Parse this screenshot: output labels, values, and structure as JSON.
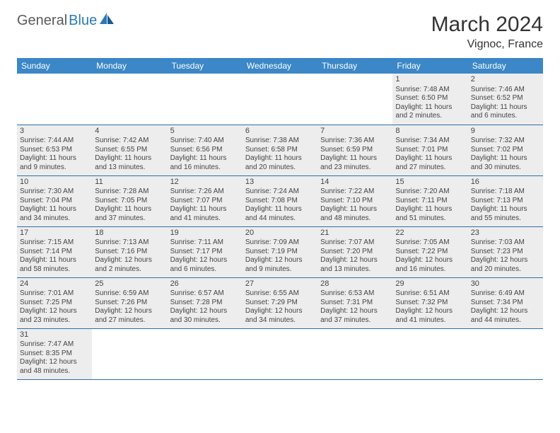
{
  "logo": {
    "brand1": "General",
    "brand2": "Blue"
  },
  "title": "March 2024",
  "location": "Vignoc, France",
  "colors": {
    "header_bg": "#3b87c7",
    "header_text": "#ffffff",
    "cell_bg": "#ededed",
    "cell_border": "#2e6fa8",
    "logo_gray": "#5a5a5a",
    "logo_blue": "#2a7ab8"
  },
  "weekdays": [
    "Sunday",
    "Monday",
    "Tuesday",
    "Wednesday",
    "Thursday",
    "Friday",
    "Saturday"
  ],
  "weeks": [
    [
      null,
      null,
      null,
      null,
      null,
      {
        "n": "1",
        "sr": "Sunrise: 7:48 AM",
        "ss": "Sunset: 6:50 PM",
        "dl": "Daylight: 11 hours and 2 minutes."
      },
      {
        "n": "2",
        "sr": "Sunrise: 7:46 AM",
        "ss": "Sunset: 6:52 PM",
        "dl": "Daylight: 11 hours and 6 minutes."
      }
    ],
    [
      {
        "n": "3",
        "sr": "Sunrise: 7:44 AM",
        "ss": "Sunset: 6:53 PM",
        "dl": "Daylight: 11 hours and 9 minutes."
      },
      {
        "n": "4",
        "sr": "Sunrise: 7:42 AM",
        "ss": "Sunset: 6:55 PM",
        "dl": "Daylight: 11 hours and 13 minutes."
      },
      {
        "n": "5",
        "sr": "Sunrise: 7:40 AM",
        "ss": "Sunset: 6:56 PM",
        "dl": "Daylight: 11 hours and 16 minutes."
      },
      {
        "n": "6",
        "sr": "Sunrise: 7:38 AM",
        "ss": "Sunset: 6:58 PM",
        "dl": "Daylight: 11 hours and 20 minutes."
      },
      {
        "n": "7",
        "sr": "Sunrise: 7:36 AM",
        "ss": "Sunset: 6:59 PM",
        "dl": "Daylight: 11 hours and 23 minutes."
      },
      {
        "n": "8",
        "sr": "Sunrise: 7:34 AM",
        "ss": "Sunset: 7:01 PM",
        "dl": "Daylight: 11 hours and 27 minutes."
      },
      {
        "n": "9",
        "sr": "Sunrise: 7:32 AM",
        "ss": "Sunset: 7:02 PM",
        "dl": "Daylight: 11 hours and 30 minutes."
      }
    ],
    [
      {
        "n": "10",
        "sr": "Sunrise: 7:30 AM",
        "ss": "Sunset: 7:04 PM",
        "dl": "Daylight: 11 hours and 34 minutes."
      },
      {
        "n": "11",
        "sr": "Sunrise: 7:28 AM",
        "ss": "Sunset: 7:05 PM",
        "dl": "Daylight: 11 hours and 37 minutes."
      },
      {
        "n": "12",
        "sr": "Sunrise: 7:26 AM",
        "ss": "Sunset: 7:07 PM",
        "dl": "Daylight: 11 hours and 41 minutes."
      },
      {
        "n": "13",
        "sr": "Sunrise: 7:24 AM",
        "ss": "Sunset: 7:08 PM",
        "dl": "Daylight: 11 hours and 44 minutes."
      },
      {
        "n": "14",
        "sr": "Sunrise: 7:22 AM",
        "ss": "Sunset: 7:10 PM",
        "dl": "Daylight: 11 hours and 48 minutes."
      },
      {
        "n": "15",
        "sr": "Sunrise: 7:20 AM",
        "ss": "Sunset: 7:11 PM",
        "dl": "Daylight: 11 hours and 51 minutes."
      },
      {
        "n": "16",
        "sr": "Sunrise: 7:18 AM",
        "ss": "Sunset: 7:13 PM",
        "dl": "Daylight: 11 hours and 55 minutes."
      }
    ],
    [
      {
        "n": "17",
        "sr": "Sunrise: 7:15 AM",
        "ss": "Sunset: 7:14 PM",
        "dl": "Daylight: 11 hours and 58 minutes."
      },
      {
        "n": "18",
        "sr": "Sunrise: 7:13 AM",
        "ss": "Sunset: 7:16 PM",
        "dl": "Daylight: 12 hours and 2 minutes."
      },
      {
        "n": "19",
        "sr": "Sunrise: 7:11 AM",
        "ss": "Sunset: 7:17 PM",
        "dl": "Daylight: 12 hours and 6 minutes."
      },
      {
        "n": "20",
        "sr": "Sunrise: 7:09 AM",
        "ss": "Sunset: 7:19 PM",
        "dl": "Daylight: 12 hours and 9 minutes."
      },
      {
        "n": "21",
        "sr": "Sunrise: 7:07 AM",
        "ss": "Sunset: 7:20 PM",
        "dl": "Daylight: 12 hours and 13 minutes."
      },
      {
        "n": "22",
        "sr": "Sunrise: 7:05 AM",
        "ss": "Sunset: 7:22 PM",
        "dl": "Daylight: 12 hours and 16 minutes."
      },
      {
        "n": "23",
        "sr": "Sunrise: 7:03 AM",
        "ss": "Sunset: 7:23 PM",
        "dl": "Daylight: 12 hours and 20 minutes."
      }
    ],
    [
      {
        "n": "24",
        "sr": "Sunrise: 7:01 AM",
        "ss": "Sunset: 7:25 PM",
        "dl": "Daylight: 12 hours and 23 minutes."
      },
      {
        "n": "25",
        "sr": "Sunrise: 6:59 AM",
        "ss": "Sunset: 7:26 PM",
        "dl": "Daylight: 12 hours and 27 minutes."
      },
      {
        "n": "26",
        "sr": "Sunrise: 6:57 AM",
        "ss": "Sunset: 7:28 PM",
        "dl": "Daylight: 12 hours and 30 minutes."
      },
      {
        "n": "27",
        "sr": "Sunrise: 6:55 AM",
        "ss": "Sunset: 7:29 PM",
        "dl": "Daylight: 12 hours and 34 minutes."
      },
      {
        "n": "28",
        "sr": "Sunrise: 6:53 AM",
        "ss": "Sunset: 7:31 PM",
        "dl": "Daylight: 12 hours and 37 minutes."
      },
      {
        "n": "29",
        "sr": "Sunrise: 6:51 AM",
        "ss": "Sunset: 7:32 PM",
        "dl": "Daylight: 12 hours and 41 minutes."
      },
      {
        "n": "30",
        "sr": "Sunrise: 6:49 AM",
        "ss": "Sunset: 7:34 PM",
        "dl": "Daylight: 12 hours and 44 minutes."
      }
    ],
    [
      {
        "n": "31",
        "sr": "Sunrise: 7:47 AM",
        "ss": "Sunset: 8:35 PM",
        "dl": "Daylight: 12 hours and 48 minutes."
      },
      null,
      null,
      null,
      null,
      null,
      null
    ]
  ]
}
